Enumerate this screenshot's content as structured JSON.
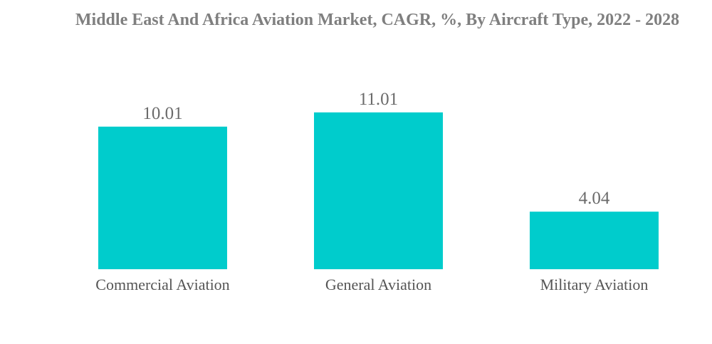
{
  "chart_data": {
    "type": "bar",
    "title": "Middle East And Africa Aviation Market, CAGR, %, By Aircraft Type, 2022 - 2028",
    "categories": [
      "Commercial Aviation",
      "General Aviation",
      "Military Aviation"
    ],
    "values": [
      10.01,
      11.01,
      4.04
    ],
    "data_labels": [
      "10.01",
      "11.01",
      "4.04"
    ],
    "xlabel": "",
    "ylabel": "",
    "ylim": [
      0,
      12
    ],
    "grid": false,
    "legend": "none",
    "bar_color": "#00cccc"
  }
}
